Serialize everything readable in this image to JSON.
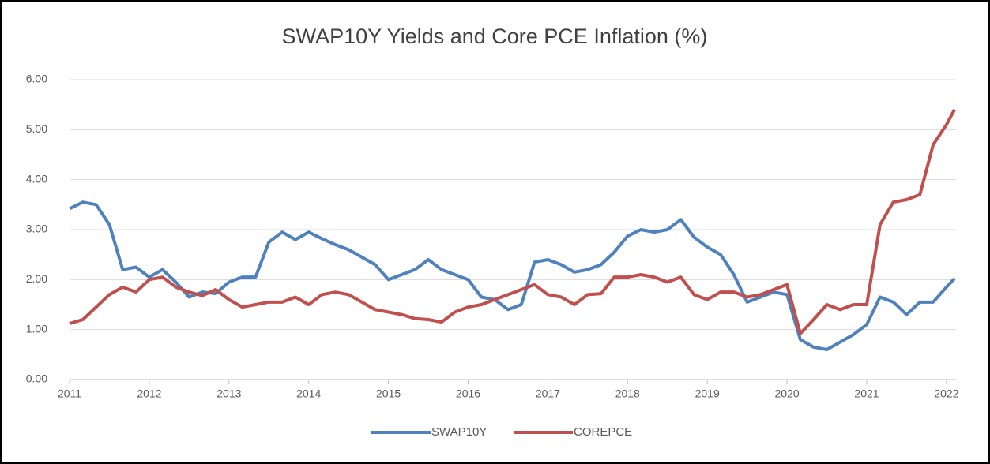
{
  "chart_data": {
    "type": "line",
    "title": "SWAP10Y Yields and Core PCE Inflation (%)",
    "x": [
      2011,
      2011.167,
      2011.333,
      2011.5,
      2011.667,
      2011.833,
      2012,
      2012.167,
      2012.333,
      2012.5,
      2012.667,
      2012.833,
      2013,
      2013.167,
      2013.333,
      2013.5,
      2013.667,
      2013.833,
      2014,
      2014.167,
      2014.333,
      2014.5,
      2014.667,
      2014.833,
      2015,
      2015.167,
      2015.333,
      2015.5,
      2015.667,
      2015.833,
      2016,
      2016.167,
      2016.333,
      2016.5,
      2016.667,
      2016.833,
      2017,
      2017.167,
      2017.333,
      2017.5,
      2017.667,
      2017.833,
      2018,
      2018.167,
      2018.333,
      2018.5,
      2018.667,
      2018.833,
      2019,
      2019.167,
      2019.333,
      2019.5,
      2019.667,
      2019.833,
      2020,
      2020.167,
      2020.333,
      2020.5,
      2020.667,
      2020.833,
      2021,
      2021.167,
      2021.333,
      2021.5,
      2021.667,
      2021.833,
      2022,
      2022.1
    ],
    "series": [
      {
        "name": "SWAP10Y",
        "color": "#4f81bd",
        "values": [
          3.42,
          3.55,
          3.5,
          3.1,
          2.2,
          2.25,
          2.05,
          2.2,
          1.95,
          1.65,
          1.75,
          1.72,
          1.95,
          2.05,
          2.05,
          2.75,
          2.95,
          2.8,
          2.95,
          2.82,
          2.7,
          2.6,
          2.45,
          2.3,
          2.0,
          2.1,
          2.2,
          2.4,
          2.2,
          2.1,
          2.0,
          1.65,
          1.6,
          1.4,
          1.5,
          2.35,
          2.4,
          2.3,
          2.15,
          2.2,
          2.3,
          2.55,
          2.87,
          3.0,
          2.95,
          3.0,
          3.2,
          2.85,
          2.65,
          2.5,
          2.1,
          1.55,
          1.65,
          1.75,
          1.7,
          0.8,
          0.65,
          0.6,
          0.75,
          0.9,
          1.1,
          1.65,
          1.55,
          1.3,
          1.55,
          1.55,
          1.85,
          2.02
        ]
      },
      {
        "name": "COREPCE",
        "color": "#c0504d",
        "values": [
          1.12,
          1.2,
          1.45,
          1.7,
          1.85,
          1.75,
          2.0,
          2.05,
          1.85,
          1.75,
          1.68,
          1.8,
          1.6,
          1.45,
          1.5,
          1.55,
          1.55,
          1.65,
          1.5,
          1.7,
          1.75,
          1.7,
          1.55,
          1.4,
          1.35,
          1.3,
          1.22,
          1.2,
          1.15,
          1.35,
          1.45,
          1.5,
          1.6,
          1.7,
          1.8,
          1.9,
          1.7,
          1.65,
          1.5,
          1.7,
          1.72,
          2.05,
          2.05,
          2.1,
          2.05,
          1.95,
          2.05,
          1.7,
          1.6,
          1.75,
          1.75,
          1.65,
          1.7,
          1.8,
          1.9,
          0.92,
          1.2,
          1.5,
          1.4,
          1.5,
          1.5,
          3.1,
          3.55,
          3.6,
          3.7,
          4.7,
          5.1,
          5.4
        ]
      }
    ],
    "xlim": [
      2011,
      2022.12
    ],
    "xticks": [
      2011,
      2012,
      2013,
      2014,
      2015,
      2016,
      2017,
      2018,
      2019,
      2020,
      2021,
      2022
    ],
    "ylim": [
      0,
      6
    ],
    "yticks": [
      {
        "value": 0,
        "label": "0.00"
      },
      {
        "value": 1,
        "label": "1.00"
      },
      {
        "value": 2,
        "label": "2.00"
      },
      {
        "value": 3,
        "label": "3.00"
      },
      {
        "value": 4,
        "label": "4.00"
      },
      {
        "value": 5,
        "label": "5.00"
      },
      {
        "value": 6,
        "label": "6.00"
      }
    ],
    "grid": true,
    "legend": "bottom"
  }
}
